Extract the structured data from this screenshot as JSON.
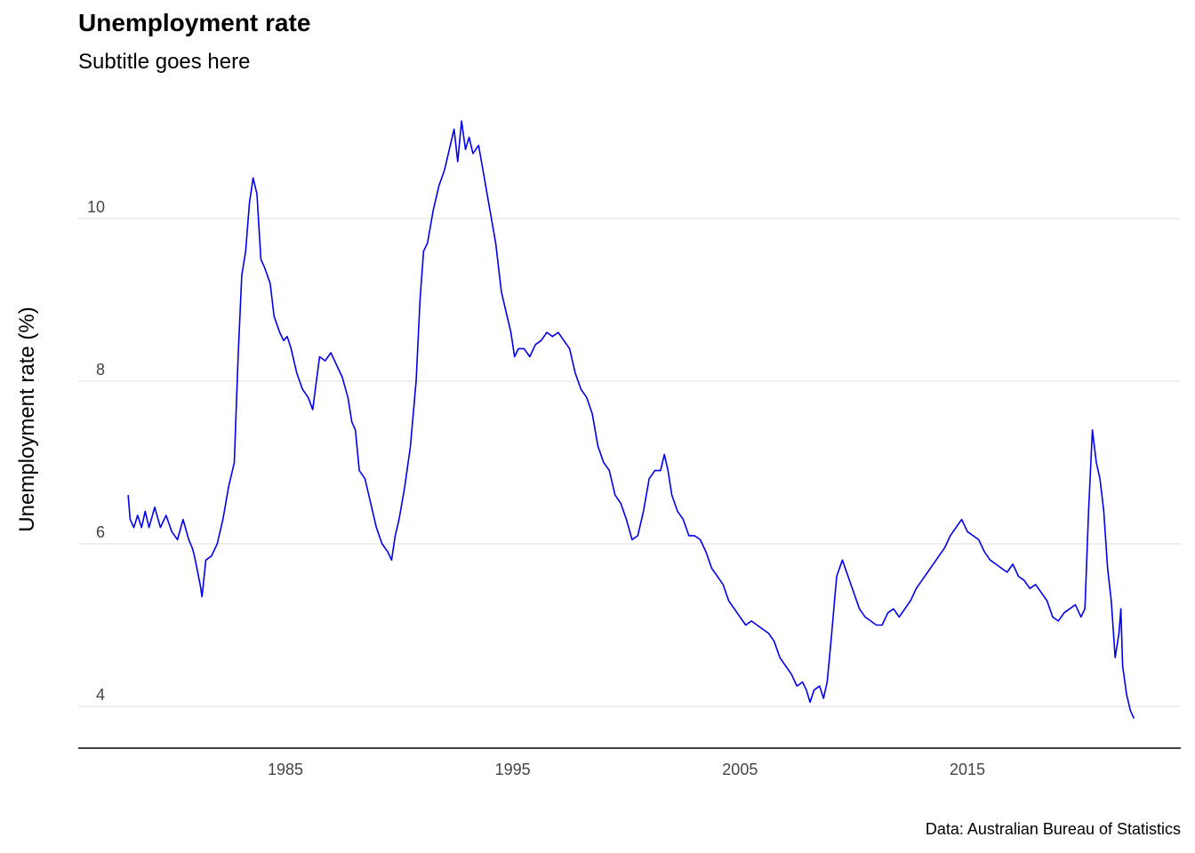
{
  "chart_data": {
    "type": "line",
    "title": "Unemployment rate",
    "subtitle": "Subtitle goes here",
    "ylabel": "Unemployment rate (%)",
    "xlabel": "",
    "caption": "Data: Australian Bureau of Statistics",
    "x_ticks": [
      1985,
      1995,
      2005,
      2015
    ],
    "y_ticks": [
      4,
      6,
      8,
      10
    ],
    "xlim": [
      1977.9,
      2022.6
    ],
    "ylim": [
      3.5,
      11.4
    ],
    "grid": "horizontal major lines",
    "colors": {
      "line": "#0000ee",
      "grid": "#e4e4e4",
      "axis": "#000000"
    },
    "series": [
      {
        "values": [
          [
            1978.08,
            6.6
          ],
          [
            1978.17,
            6.3
          ],
          [
            1978.33,
            6.2
          ],
          [
            1978.5,
            6.35
          ],
          [
            1978.67,
            6.2
          ],
          [
            1978.83,
            6.4
          ],
          [
            1979.0,
            6.2
          ],
          [
            1979.25,
            6.45
          ],
          [
            1979.5,
            6.2
          ],
          [
            1979.75,
            6.35
          ],
          [
            1980.0,
            6.15
          ],
          [
            1980.25,
            6.05
          ],
          [
            1980.5,
            6.3
          ],
          [
            1980.75,
            6.05
          ],
          [
            1980.9,
            5.95
          ],
          [
            1981.0,
            5.85
          ],
          [
            1981.25,
            5.5
          ],
          [
            1981.33,
            5.35
          ],
          [
            1981.5,
            5.8
          ],
          [
            1981.75,
            5.85
          ],
          [
            1982.0,
            6.0
          ],
          [
            1982.25,
            6.3
          ],
          [
            1982.5,
            6.7
          ],
          [
            1982.75,
            7.0
          ],
          [
            1982.92,
            8.3
          ],
          [
            1983.08,
            9.3
          ],
          [
            1983.25,
            9.6
          ],
          [
            1983.42,
            10.2
          ],
          [
            1983.58,
            10.5
          ],
          [
            1983.75,
            10.3
          ],
          [
            1983.92,
            9.5
          ],
          [
            1984.08,
            9.4
          ],
          [
            1984.33,
            9.2
          ],
          [
            1984.5,
            8.8
          ],
          [
            1984.75,
            8.6
          ],
          [
            1984.92,
            8.5
          ],
          [
            1985.08,
            8.55
          ],
          [
            1985.25,
            8.4
          ],
          [
            1985.5,
            8.1
          ],
          [
            1985.75,
            7.9
          ],
          [
            1986.0,
            7.8
          ],
          [
            1986.2,
            7.65
          ],
          [
            1986.5,
            8.3
          ],
          [
            1986.75,
            8.25
          ],
          [
            1987.0,
            8.35
          ],
          [
            1987.25,
            8.2
          ],
          [
            1987.5,
            8.05
          ],
          [
            1987.75,
            7.8
          ],
          [
            1987.92,
            7.5
          ],
          [
            1988.08,
            7.4
          ],
          [
            1988.25,
            6.9
          ],
          [
            1988.5,
            6.8
          ],
          [
            1988.75,
            6.5
          ],
          [
            1989.0,
            6.2
          ],
          [
            1989.25,
            6.0
          ],
          [
            1989.5,
            5.9
          ],
          [
            1989.67,
            5.8
          ],
          [
            1989.83,
            6.1
          ],
          [
            1990.0,
            6.3
          ],
          [
            1990.25,
            6.7
          ],
          [
            1990.5,
            7.2
          ],
          [
            1990.75,
            8.0
          ],
          [
            1990.92,
            9.0
          ],
          [
            1991.08,
            9.6
          ],
          [
            1991.25,
            9.7
          ],
          [
            1991.5,
            10.1
          ],
          [
            1991.75,
            10.4
          ],
          [
            1992.0,
            10.6
          ],
          [
            1992.25,
            10.9
          ],
          [
            1992.42,
            11.1
          ],
          [
            1992.58,
            10.7
          ],
          [
            1992.75,
            11.2
          ],
          [
            1992.92,
            10.85
          ],
          [
            1993.08,
            11.0
          ],
          [
            1993.25,
            10.8
          ],
          [
            1993.5,
            10.9
          ],
          [
            1993.75,
            10.5
          ],
          [
            1994.0,
            10.1
          ],
          [
            1994.25,
            9.7
          ],
          [
            1994.5,
            9.1
          ],
          [
            1994.75,
            8.8
          ],
          [
            1994.92,
            8.6
          ],
          [
            1995.08,
            8.3
          ],
          [
            1995.25,
            8.4
          ],
          [
            1995.5,
            8.4
          ],
          [
            1995.75,
            8.3
          ],
          [
            1996.0,
            8.45
          ],
          [
            1996.25,
            8.5
          ],
          [
            1996.5,
            8.6
          ],
          [
            1996.75,
            8.55
          ],
          [
            1997.0,
            8.6
          ],
          [
            1997.25,
            8.5
          ],
          [
            1997.5,
            8.4
          ],
          [
            1997.75,
            8.1
          ],
          [
            1998.0,
            7.9
          ],
          [
            1998.25,
            7.8
          ],
          [
            1998.5,
            7.6
          ],
          [
            1998.75,
            7.2
          ],
          [
            1999.0,
            7.0
          ],
          [
            1999.25,
            6.9
          ],
          [
            1999.5,
            6.6
          ],
          [
            1999.75,
            6.5
          ],
          [
            2000.0,
            6.3
          ],
          [
            2000.25,
            6.05
          ],
          [
            2000.5,
            6.1
          ],
          [
            2000.75,
            6.4
          ],
          [
            2001.0,
            6.8
          ],
          [
            2001.25,
            6.9
          ],
          [
            2001.5,
            6.9
          ],
          [
            2001.67,
            7.1
          ],
          [
            2001.83,
            6.9
          ],
          [
            2002.0,
            6.6
          ],
          [
            2002.25,
            6.4
          ],
          [
            2002.5,
            6.3
          ],
          [
            2002.75,
            6.1
          ],
          [
            2003.0,
            6.1
          ],
          [
            2003.25,
            6.05
          ],
          [
            2003.5,
            5.9
          ],
          [
            2003.75,
            5.7
          ],
          [
            2004.0,
            5.6
          ],
          [
            2004.25,
            5.5
          ],
          [
            2004.5,
            5.3
          ],
          [
            2004.75,
            5.2
          ],
          [
            2005.0,
            5.1
          ],
          [
            2005.25,
            5.0
          ],
          [
            2005.5,
            5.05
          ],
          [
            2005.75,
            5.0
          ],
          [
            2006.0,
            4.95
          ],
          [
            2006.25,
            4.9
          ],
          [
            2006.5,
            4.8
          ],
          [
            2006.75,
            4.6
          ],
          [
            2007.0,
            4.5
          ],
          [
            2007.25,
            4.4
          ],
          [
            2007.5,
            4.25
          ],
          [
            2007.75,
            4.3
          ],
          [
            2007.92,
            4.2
          ],
          [
            2008.08,
            4.05
          ],
          [
            2008.25,
            4.2
          ],
          [
            2008.5,
            4.25
          ],
          [
            2008.67,
            4.1
          ],
          [
            2008.83,
            4.3
          ],
          [
            2009.0,
            4.8
          ],
          [
            2009.25,
            5.6
          ],
          [
            2009.5,
            5.8
          ],
          [
            2009.75,
            5.6
          ],
          [
            2010.0,
            5.4
          ],
          [
            2010.25,
            5.2
          ],
          [
            2010.5,
            5.1
          ],
          [
            2010.75,
            5.05
          ],
          [
            2011.0,
            5.0
          ],
          [
            2011.25,
            5.0
          ],
          [
            2011.5,
            5.15
          ],
          [
            2011.75,
            5.2
          ],
          [
            2012.0,
            5.1
          ],
          [
            2012.25,
            5.2
          ],
          [
            2012.5,
            5.3
          ],
          [
            2012.75,
            5.45
          ],
          [
            2013.0,
            5.55
          ],
          [
            2013.25,
            5.65
          ],
          [
            2013.5,
            5.75
          ],
          [
            2013.75,
            5.85
          ],
          [
            2014.0,
            5.95
          ],
          [
            2014.25,
            6.1
          ],
          [
            2014.5,
            6.2
          ],
          [
            2014.75,
            6.3
          ],
          [
            2015.0,
            6.15
          ],
          [
            2015.25,
            6.1
          ],
          [
            2015.5,
            6.05
          ],
          [
            2015.75,
            5.9
          ],
          [
            2016.0,
            5.8
          ],
          [
            2016.25,
            5.75
          ],
          [
            2016.5,
            5.7
          ],
          [
            2016.75,
            5.65
          ],
          [
            2017.0,
            5.75
          ],
          [
            2017.25,
            5.6
          ],
          [
            2017.5,
            5.55
          ],
          [
            2017.75,
            5.45
          ],
          [
            2018.0,
            5.5
          ],
          [
            2018.25,
            5.4
          ],
          [
            2018.5,
            5.3
          ],
          [
            2018.75,
            5.1
          ],
          [
            2019.0,
            5.05
          ],
          [
            2019.25,
            5.15
          ],
          [
            2019.5,
            5.2
          ],
          [
            2019.75,
            5.25
          ],
          [
            2020.0,
            5.1
          ],
          [
            2020.17,
            5.2
          ],
          [
            2020.33,
            6.4
          ],
          [
            2020.5,
            7.4
          ],
          [
            2020.67,
            7.0
          ],
          [
            2020.83,
            6.8
          ],
          [
            2021.0,
            6.4
          ],
          [
            2021.17,
            5.7
          ],
          [
            2021.33,
            5.3
          ],
          [
            2021.5,
            4.6
          ],
          [
            2021.67,
            4.9
          ],
          [
            2021.75,
            5.2
          ],
          [
            2021.83,
            4.5
          ],
          [
            2022.0,
            4.15
          ],
          [
            2022.17,
            3.95
          ],
          [
            2022.33,
            3.85
          ]
        ]
      }
    ]
  }
}
